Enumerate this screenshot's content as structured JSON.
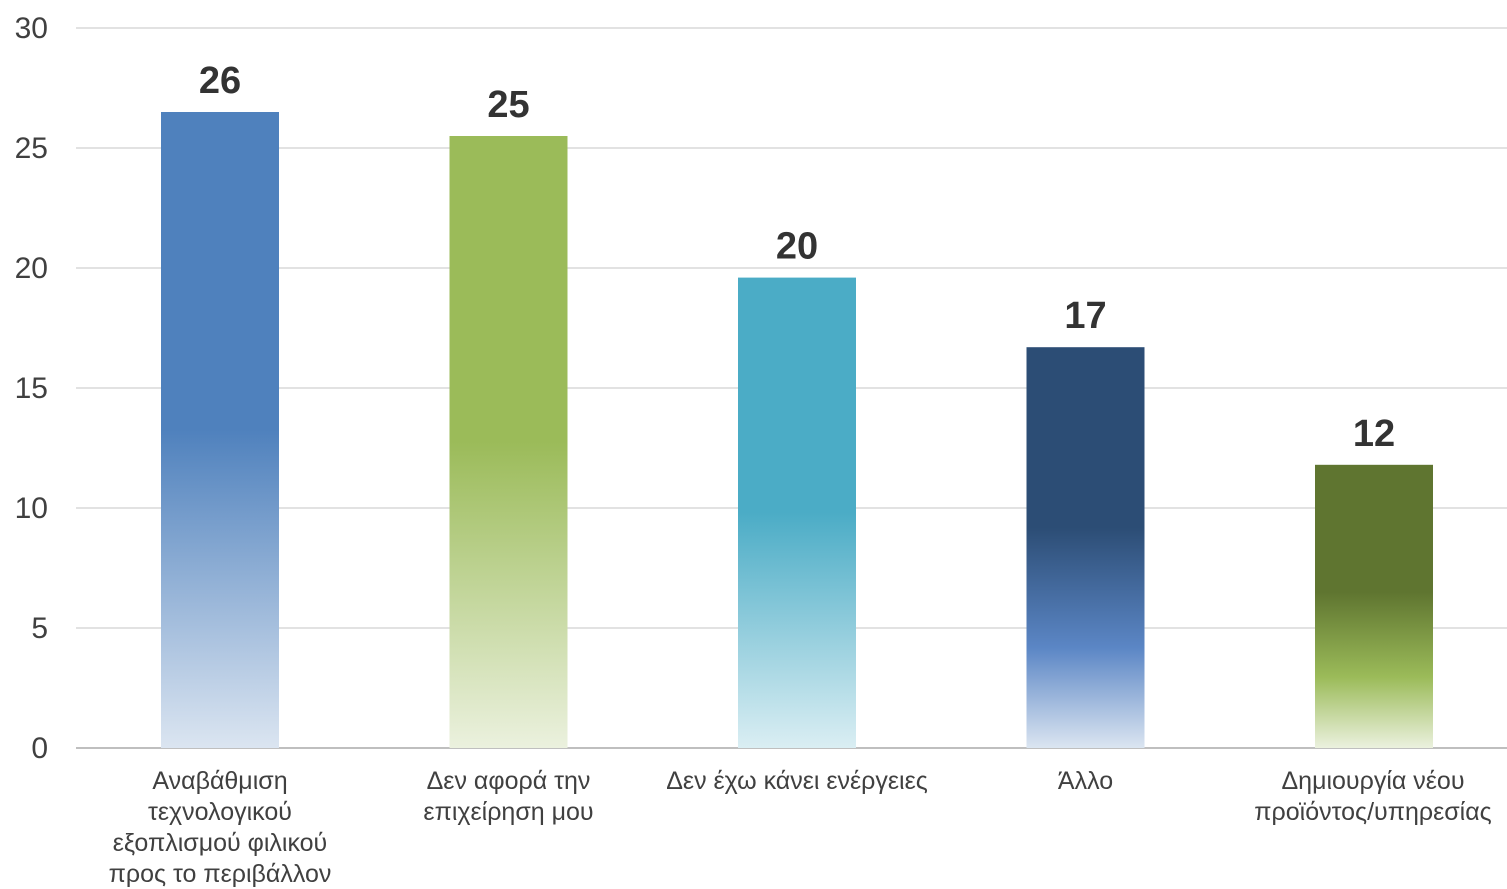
{
  "chart_data": {
    "type": "bar",
    "categories": [
      "Αναβάθμιση τεχνολογικού εξοπλισμού φιλικού προς το περιβάλλον",
      "Δεν αφορά την επιχείρηση μου",
      "Δεν έχω κάνει ενέργειες",
      "Άλλο",
      "Δημιουργία νέου προϊόντος/υπηρεσίας"
    ],
    "category_lines": [
      [
        "Αναβάθμιση",
        "τεχνολογικού",
        "εξοπλισμού φιλικού",
        "προς το περιβάλλον"
      ],
      [
        "Δεν αφορά την",
        "επιχείρηση μου"
      ],
      [
        "Δεν έχω κάνει ενέργειες"
      ],
      [
        "Άλλο"
      ],
      [
        "Δημιουργία νέου",
        "προϊόντος/υπηρεσίας"
      ]
    ],
    "values": [
      26.5,
      25.5,
      19.6,
      16.7,
      11.8
    ],
    "data_labels": [
      "26",
      "25",
      "20",
      "17",
      "12"
    ],
    "ylim": [
      0,
      30
    ],
    "yticks": [
      0,
      5,
      10,
      15,
      20,
      25,
      30
    ],
    "grid": true,
    "legend": "none",
    "title": "",
    "xlabel": "",
    "ylabel": "",
    "colors": [
      {
        "top": "#4f81bd",
        "bottom": "#dbe5f1"
      },
      {
        "top": "#9bbb59",
        "bottom": "#ebf1de"
      },
      {
        "top": "#4bacc6",
        "bottom": "#daeef3"
      },
      {
        "top": "#2c4d75",
        "mid": "#5b86c5",
        "bottom": "#dbe5f1"
      },
      {
        "top": "#5f7530",
        "mid": "#9bbb59",
        "bottom": "#ebf1de"
      }
    ]
  }
}
